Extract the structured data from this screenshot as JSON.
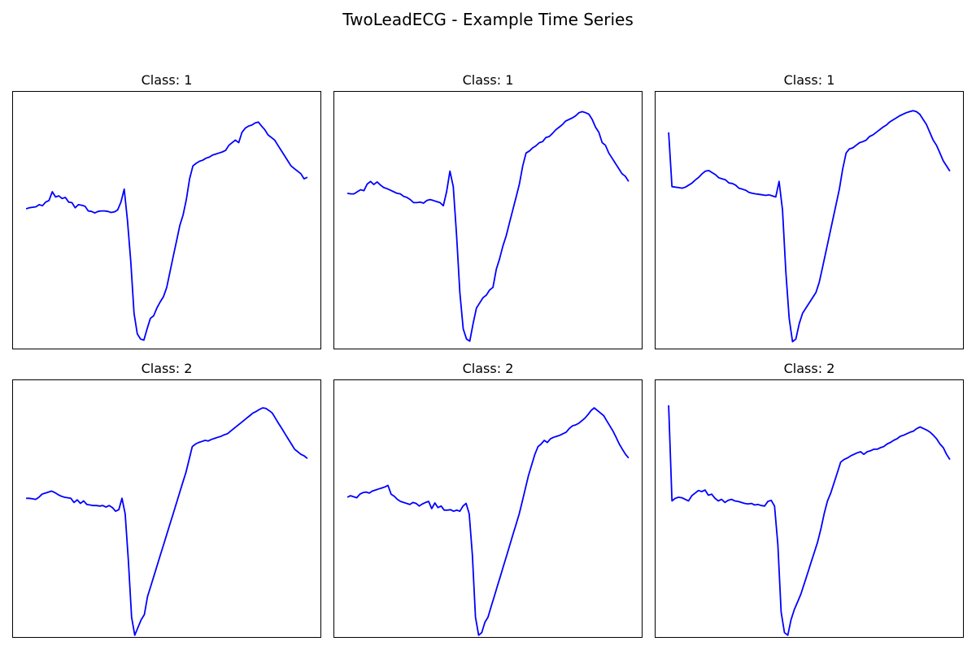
{
  "suptitle": "TwoLeadECG - Example Time Series",
  "line_color": "#0000ff",
  "chart_data": [
    {
      "type": "line",
      "title": "Class: 1",
      "ylim": [
        -3.0,
        2.0
      ],
      "y": [
        -0.28,
        -0.26,
        -0.25,
        -0.24,
        -0.2,
        -0.22,
        -0.15,
        -0.12,
        0.05,
        -0.05,
        -0.03,
        -0.08,
        -0.06,
        -0.15,
        -0.16,
        -0.26,
        -0.2,
        -0.21,
        -0.23,
        -0.32,
        -0.33,
        -0.36,
        -0.33,
        -0.32,
        -0.32,
        -0.33,
        -0.35,
        -0.34,
        -0.3,
        -0.15,
        0.1,
        -0.5,
        -1.3,
        -2.3,
        -2.7,
        -2.8,
        -2.82,
        -2.6,
        -2.4,
        -2.35,
        -2.2,
        -2.08,
        -1.98,
        -1.8,
        -1.5,
        -1.2,
        -0.9,
        -0.6,
        -0.4,
        -0.1,
        0.3,
        0.55,
        0.6,
        0.64,
        0.66,
        0.7,
        0.72,
        0.76,
        0.78,
        0.8,
        0.82,
        0.85,
        0.95,
        1.0,
        1.05,
        1.0,
        1.2,
        1.28,
        1.32,
        1.34,
        1.38,
        1.4,
        1.32,
        1.25,
        1.15,
        1.1,
        1.05,
        0.95,
        0.85,
        0.75,
        0.65,
        0.55,
        0.5,
        0.45,
        0.4,
        0.3,
        0.33
      ]
    },
    {
      "type": "line",
      "title": "Class: 1",
      "ylim": [
        -3.0,
        2.0
      ],
      "y": [
        0.02,
        0.01,
        0.01,
        0.05,
        0.09,
        0.07,
        0.2,
        0.25,
        0.19,
        0.24,
        0.18,
        0.13,
        0.11,
        0.08,
        0.05,
        0.02,
        0.01,
        -0.04,
        -0.06,
        -0.1,
        -0.16,
        -0.16,
        -0.15,
        -0.17,
        -0.12,
        -0.1,
        -0.12,
        -0.14,
        -0.16,
        -0.22,
        0.05,
        0.45,
        0.15,
        -0.8,
        -1.9,
        -2.6,
        -2.8,
        -2.84,
        -2.5,
        -2.2,
        -2.1,
        -2.0,
        -1.95,
        -1.85,
        -1.8,
        -1.45,
        -1.25,
        -1.0,
        -0.8,
        -0.55,
        -0.3,
        -0.05,
        0.2,
        0.55,
        0.8,
        0.84,
        0.9,
        0.94,
        1.0,
        1.02,
        1.1,
        1.12,
        1.18,
        1.25,
        1.3,
        1.35,
        1.42,
        1.45,
        1.48,
        1.52,
        1.58,
        1.6,
        1.58,
        1.55,
        1.45,
        1.3,
        1.2,
        1.0,
        0.95,
        0.8,
        0.7,
        0.6,
        0.5,
        0.4,
        0.35,
        0.25
      ]
    },
    {
      "type": "line",
      "title": "Class: 1",
      "ylim": [
        -3.0,
        2.0
      ],
      "y": [
        1.2,
        0.15,
        0.14,
        0.13,
        0.12,
        0.14,
        0.18,
        0.22,
        0.28,
        0.33,
        0.4,
        0.45,
        0.46,
        0.42,
        0.38,
        0.32,
        0.3,
        0.28,
        0.22,
        0.21,
        0.18,
        0.12,
        0.1,
        0.08,
        0.04,
        0.02,
        0.01,
        0.0,
        -0.01,
        -0.02,
        -0.01,
        -0.03,
        -0.05,
        0.25,
        -0.3,
        -1.5,
        -2.4,
        -2.85,
        -2.8,
        -2.5,
        -2.3,
        -2.2,
        -2.1,
        -2.0,
        -1.9,
        -1.7,
        -1.4,
        -1.1,
        -0.8,
        -0.5,
        -0.2,
        0.1,
        0.5,
        0.8,
        0.88,
        0.9,
        0.95,
        1.0,
        1.02,
        1.05,
        1.12,
        1.15,
        1.2,
        1.25,
        1.3,
        1.34,
        1.4,
        1.44,
        1.48,
        1.52,
        1.55,
        1.58,
        1.6,
        1.62,
        1.6,
        1.55,
        1.45,
        1.35,
        1.2,
        1.05,
        0.95,
        0.8,
        0.65,
        0.55,
        0.45
      ]
    },
    {
      "type": "line",
      "title": "Class: 2",
      "ylim": [
        -3.0,
        2.0
      ],
      "y": [
        -0.3,
        -0.3,
        -0.31,
        -0.32,
        -0.28,
        -0.22,
        -0.2,
        -0.18,
        -0.16,
        -0.19,
        -0.23,
        -0.26,
        -0.28,
        -0.29,
        -0.3,
        -0.38,
        -0.33,
        -0.4,
        -0.35,
        -0.42,
        -0.43,
        -0.44,
        -0.44,
        -0.45,
        -0.44,
        -0.47,
        -0.44,
        -0.48,
        -0.55,
        -0.52,
        -0.3,
        -0.6,
        -1.5,
        -2.6,
        -2.95,
        -2.8,
        -2.65,
        -2.55,
        -2.2,
        -2.0,
        -1.8,
        -1.6,
        -1.4,
        -1.2,
        -1.0,
        -0.8,
        -0.6,
        -0.4,
        -0.2,
        0.0,
        0.2,
        0.45,
        0.7,
        0.75,
        0.78,
        0.8,
        0.82,
        0.81,
        0.84,
        0.86,
        0.88,
        0.9,
        0.93,
        0.95,
        1.0,
        1.05,
        1.1,
        1.15,
        1.2,
        1.25,
        1.3,
        1.35,
        1.38,
        1.42,
        1.45,
        1.44,
        1.4,
        1.35,
        1.25,
        1.15,
        1.05,
        0.95,
        0.85,
        0.75,
        0.65,
        0.6,
        0.55,
        0.52,
        0.47
      ]
    },
    {
      "type": "line",
      "title": "Class: 2",
      "ylim": [
        -3.0,
        2.0
      ],
      "y": [
        -0.28,
        -0.25,
        -0.27,
        -0.29,
        -0.22,
        -0.19,
        -0.18,
        -0.2,
        -0.16,
        -0.14,
        -0.12,
        -0.1,
        -0.08,
        -0.05,
        -0.22,
        -0.26,
        -0.32,
        -0.36,
        -0.38,
        -0.4,
        -0.42,
        -0.38,
        -0.4,
        -0.45,
        -0.41,
        -0.38,
        -0.36,
        -0.5,
        -0.39,
        -0.48,
        -0.45,
        -0.53,
        -0.53,
        -0.52,
        -0.55,
        -0.53,
        -0.55,
        -0.45,
        -0.4,
        -0.6,
        -1.4,
        -2.6,
        -2.95,
        -2.9,
        -2.7,
        -2.6,
        -2.4,
        -2.2,
        -2.0,
        -1.8,
        -1.6,
        -1.4,
        -1.2,
        -1.0,
        -0.8,
        -0.6,
        -0.35,
        -0.1,
        0.15,
        0.35,
        0.55,
        0.7,
        0.75,
        0.82,
        0.78,
        0.85,
        0.88,
        0.9,
        0.92,
        0.95,
        0.98,
        1.05,
        1.1,
        1.12,
        1.15,
        1.2,
        1.25,
        1.32,
        1.4,
        1.45,
        1.4,
        1.35,
        1.3,
        1.2,
        1.1,
        1.0,
        0.88,
        0.75,
        0.65,
        0.55,
        0.48
      ]
    },
    {
      "type": "line",
      "title": "Class: 2",
      "ylim": [
        -3.0,
        2.0
      ],
      "y": [
        1.5,
        -0.35,
        -0.3,
        -0.28,
        -0.29,
        -0.32,
        -0.35,
        -0.25,
        -0.2,
        -0.15,
        -0.17,
        -0.14,
        -0.24,
        -0.22,
        -0.3,
        -0.35,
        -0.32,
        -0.38,
        -0.34,
        -0.32,
        -0.35,
        -0.36,
        -0.38,
        -0.4,
        -0.41,
        -0.4,
        -0.43,
        -0.42,
        -0.44,
        -0.45,
        -0.36,
        -0.34,
        -0.45,
        -1.2,
        -2.5,
        -2.9,
        -2.95,
        -2.65,
        -2.45,
        -2.3,
        -2.15,
        -1.95,
        -1.75,
        -1.55,
        -1.35,
        -1.15,
        -0.9,
        -0.6,
        -0.35,
        -0.2,
        0.0,
        0.2,
        0.4,
        0.45,
        0.48,
        0.52,
        0.55,
        0.58,
        0.6,
        0.55,
        0.6,
        0.62,
        0.65,
        0.65,
        0.68,
        0.7,
        0.75,
        0.78,
        0.82,
        0.85,
        0.9,
        0.92,
        0.95,
        0.98,
        1.0,
        1.05,
        1.08,
        1.05,
        1.02,
        0.98,
        0.92,
        0.85,
        0.75,
        0.68,
        0.55,
        0.45
      ]
    }
  ]
}
